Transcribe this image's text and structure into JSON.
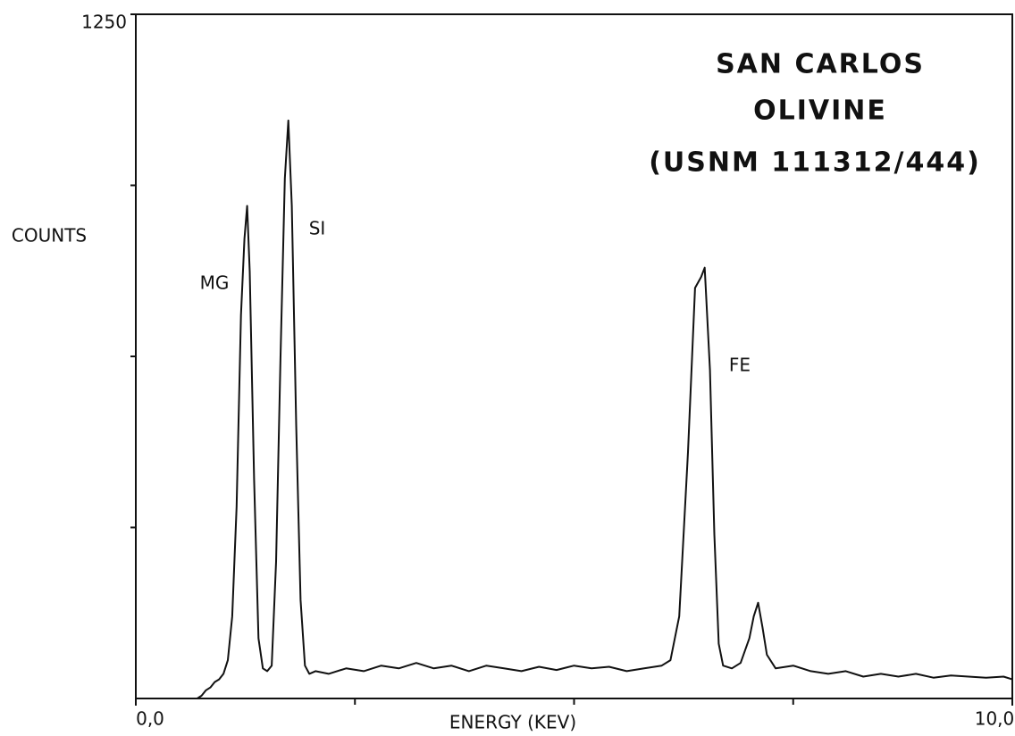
{
  "chart_data": {
    "type": "line",
    "title": [
      "SAN CARLOS",
      "OLIVINE",
      "(USNM 111312/444)"
    ],
    "x_label": "ENERGY (KEV)",
    "y_label": "COUNTS",
    "annotations": [
      "MG",
      "SI",
      "FE"
    ],
    "color": "#111111",
    "xlim": [
      0,
      10
    ],
    "ylim": [
      0,
      1250
    ],
    "xticks": [
      {
        "value": 0,
        "label": "0,0"
      },
      {
        "value": 10,
        "label": "10,0"
      }
    ],
    "xminor_ticks": [
      2.5,
      5,
      7.5
    ],
    "yticks": [
      1250
    ],
    "yminor_ticks": [
      312.5,
      625,
      937.5
    ],
    "x": [
      0.7,
      0.75,
      0.8,
      0.85,
      0.9,
      0.95,
      1.0,
      1.05,
      1.1,
      1.15,
      1.2,
      1.24,
      1.27,
      1.3,
      1.35,
      1.4,
      1.45,
      1.5,
      1.55,
      1.6,
      1.65,
      1.7,
      1.74,
      1.78,
      1.83,
      1.88,
      1.93,
      1.98,
      2.05,
      2.2,
      2.4,
      2.6,
      2.8,
      3.0,
      3.2,
      3.4,
      3.6,
      3.8,
      4.0,
      4.2,
      4.4,
      4.6,
      4.8,
      5.0,
      5.2,
      5.4,
      5.6,
      5.8,
      6.0,
      6.1,
      6.2,
      6.3,
      6.38,
      6.45,
      6.49,
      6.55,
      6.6,
      6.65,
      6.7,
      6.8,
      6.9,
      7.0,
      7.05,
      7.1,
      7.15,
      7.2,
      7.3,
      7.5,
      7.7,
      7.9,
      8.1,
      8.3,
      8.5,
      8.7,
      8.9,
      9.1,
      9.3,
      9.5,
      9.7,
      9.9,
      10.0
    ],
    "values": [
      0,
      5,
      15,
      20,
      30,
      35,
      45,
      70,
      150,
      350,
      700,
      840,
      900,
      780,
      400,
      110,
      55,
      50,
      60,
      250,
      620,
      950,
      1056,
      900,
      500,
      180,
      60,
      45,
      50,
      45,
      55,
      50,
      60,
      55,
      65,
      55,
      60,
      50,
      60,
      55,
      50,
      58,
      52,
      60,
      55,
      58,
      50,
      55,
      60,
      70,
      150,
      450,
      750,
      770,
      787,
      600,
      300,
      100,
      60,
      55,
      65,
      110,
      150,
      175,
      130,
      80,
      55,
      60,
      50,
      45,
      50,
      40,
      45,
      40,
      45,
      38,
      42,
      40,
      38,
      40,
      35
    ]
  }
}
